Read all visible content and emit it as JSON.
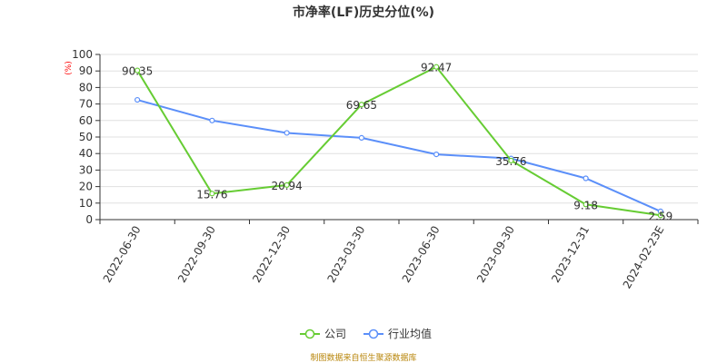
{
  "chart_data": {
    "type": "line",
    "title": "市净率(LF)历史分位(%)",
    "unit_label": "(%)",
    "categories": [
      "2022-06-30",
      "2022-09-30",
      "2022-12-30",
      "2023-03-30",
      "2023-06-30",
      "2023-09-30",
      "2023-12-31",
      "2024-02-23E"
    ],
    "ylim": [
      0,
      100
    ],
    "yticks": [
      "0",
      "10",
      "20",
      "30",
      "40",
      "50",
      "60",
      "70",
      "80",
      "90",
      "100"
    ],
    "grid": true,
    "legend_position": "bottom-center",
    "series": [
      {
        "name": "公司",
        "color": "#66cc33",
        "values": [
          90.35,
          15.76,
          20.94,
          69.65,
          92.47,
          35.76,
          9.18,
          2.59
        ],
        "labels": [
          "90.35",
          "15.76",
          "20.94",
          "69.65",
          "92.47",
          "35.76",
          "9.18",
          "2.59"
        ]
      },
      {
        "name": "行业均值",
        "color": "#5b8ff9",
        "values": [
          72.5,
          60,
          52.5,
          49.5,
          39.5,
          37,
          25,
          5
        ]
      }
    ],
    "unit_color": "#ff0000",
    "source_color": "#b8860b"
  },
  "footer": {
    "source": "制图数据来自恒生聚源数据库"
  }
}
